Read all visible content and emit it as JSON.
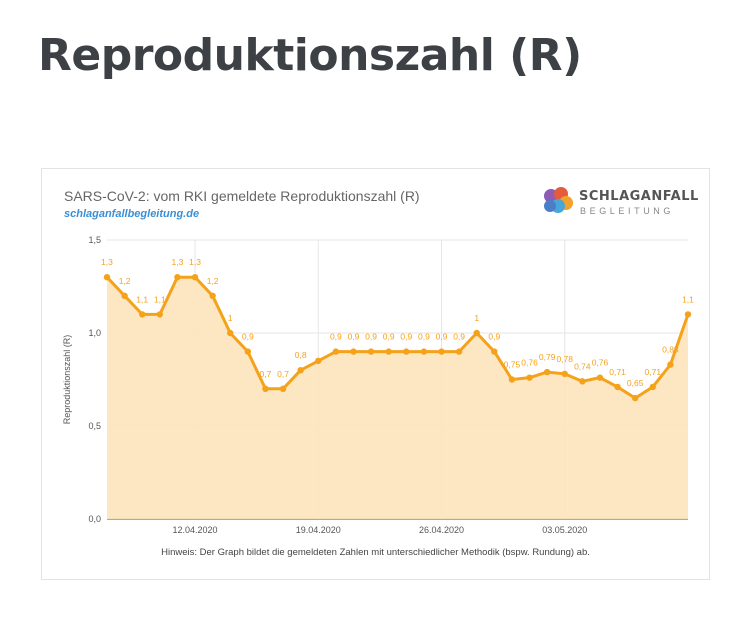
{
  "page_title": "Reproduktionszahl (R)",
  "card": {
    "title": "SARS-CoV-2: vom RKI gemeldete Reproduktionszahl (R)",
    "source": "schlaganfallbegleitung.de",
    "logo_top": "SCHLAGANFALL",
    "logo_bottom": "BEGLEITUNG",
    "footnote": "Hinweis: Der Graph bildet die gemeldeten Zahlen mit unterschiedlicher Methodik (bspw. Rundung) ab."
  },
  "colors": {
    "line": "#f5a21b",
    "area": "#fde3bb",
    "label": "#f5a21b",
    "grid": "#e6e6e6"
  },
  "chart_data": {
    "type": "area",
    "title": "SARS-CoV-2: vom RKI gemeldete Reproduktionszahl (R)",
    "xlabel": "",
    "ylabel": "Reproduktionszahl (R)",
    "ylim": [
      0,
      1.5
    ],
    "y_ticks": [
      "0,0",
      "0,5",
      "1,0",
      "1,5"
    ],
    "y_tick_values": [
      0,
      0.5,
      1.0,
      1.5
    ],
    "x_ticks": [
      "12.04.2020",
      "19.04.2020",
      "26.04.2020",
      "03.05.2020"
    ],
    "x_tick_index": [
      5,
      12,
      19,
      26
    ],
    "grid": true,
    "legend": "none",
    "series": [
      {
        "values": [
          1.3,
          1.2,
          1.1,
          1.1,
          1.3,
          1.3,
          1.2,
          1.0,
          0.9,
          0.7,
          0.7,
          0.8,
          0.85,
          0.9,
          0.9,
          0.9,
          0.9,
          0.9,
          0.9,
          0.9,
          0.9,
          1.0,
          0.9,
          0.75,
          0.76,
          0.79,
          0.78,
          0.74,
          0.76,
          0.71,
          0.65,
          0.71,
          0.83,
          1.1
        ],
        "labels": [
          "1,3",
          "1,2",
          "1,1",
          "1,1",
          "1,3",
          "1,3",
          "1,2",
          "1",
          "0,9",
          "0,7",
          "0,7",
          "0,8",
          "",
          "0,9",
          "0,9",
          "0,9",
          "0,9",
          "0,9",
          "0,9",
          "0,9",
          "0,9",
          "1",
          "0,9",
          "0,75",
          "0,76",
          "0,79",
          "0,78",
          "0,74",
          "0,76",
          "0,71",
          "0,65",
          "0,71",
          "0,83",
          "1,1"
        ]
      }
    ]
  }
}
